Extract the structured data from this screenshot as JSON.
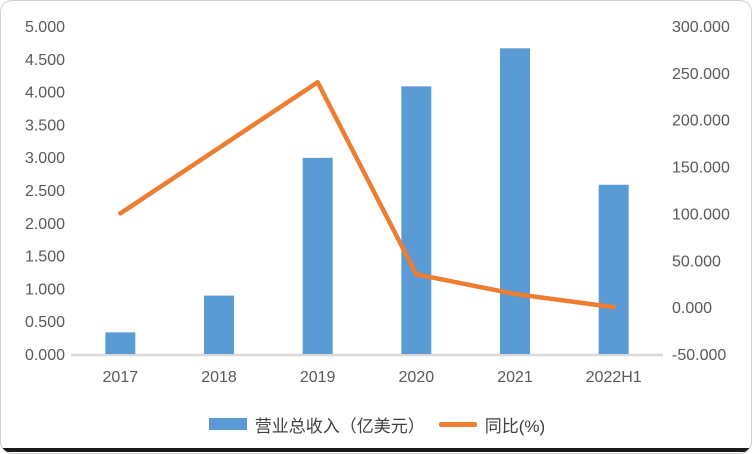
{
  "colors": {
    "bar": "#5B9BD5",
    "line": "#ED7D31",
    "tick_text": "#595959",
    "axis_line": "#D9D9D9",
    "legend_text": "#404040",
    "card_border": "#CFCFCF",
    "bottom_strip": "#1A1A1A"
  },
  "chart_data": {
    "type": "bar",
    "subtype": "combo-bar-line",
    "title": "",
    "categories": [
      "2017",
      "2018",
      "2019",
      "2020",
      "2021",
      "2022H1"
    ],
    "series": [
      {
        "name": "营业总收入（亿美元）",
        "type": "bar",
        "axis": "left",
        "color": "#5B9BD5",
        "values": [
          0.33,
          0.89,
          2.99,
          4.08,
          4.66,
          2.58
        ]
      },
      {
        "name": "同比(%)",
        "type": "line",
        "axis": "right",
        "color": "#ED7D31",
        "values": [
          100,
          170,
          240,
          35,
          14,
          0
        ]
      }
    ],
    "left_axis": {
      "min": 0,
      "max": 5,
      "step": 0.5,
      "tick_labels_top_to_bottom": [
        "5.000",
        "4.500",
        "4.000",
        "3.500",
        "3.000",
        "2.500",
        "2.000",
        "1.500",
        "1.000",
        "0.500",
        "0.000"
      ]
    },
    "right_axis": {
      "min": -50,
      "max": 300,
      "step": 50,
      "tick_labels_top_to_bottom": [
        "300.000",
        "250.000",
        "200.000",
        "150.000",
        "100.000",
        "50.000",
        "0.000",
        "-50.000"
      ]
    },
    "grid": false,
    "legend_position": "bottom"
  }
}
